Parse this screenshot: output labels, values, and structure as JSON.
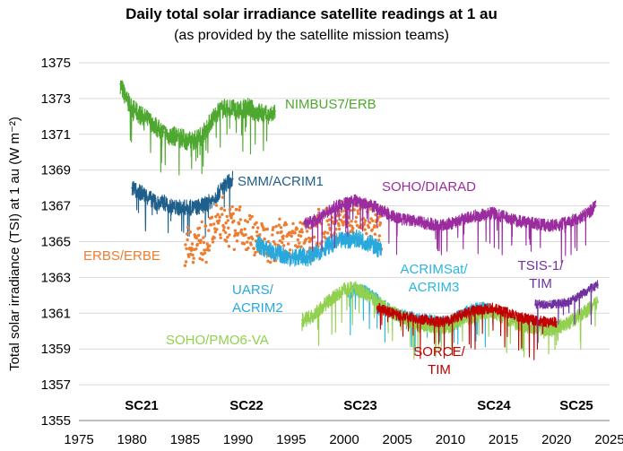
{
  "chart_data": {
    "type": "line",
    "title": "Daily total solar irradiance satellite readings at 1 au",
    "subtitle": "(as provided by the satellite mission teams)",
    "xlabel": "",
    "ylabel": "Total solar irradiance (TSI) at 1 au (W m⁻²)",
    "xlim": [
      1975,
      2025
    ],
    "ylim": [
      1355,
      1375
    ],
    "xticks": [
      1975,
      1980,
      1985,
      1990,
      1995,
      2000,
      2005,
      2010,
      2015,
      2020,
      2025
    ],
    "yticks": [
      1355,
      1357,
      1359,
      1361,
      1363,
      1365,
      1367,
      1369,
      1371,
      1373,
      1375
    ],
    "grid": "horizontal",
    "series": [
      {
        "name": "NIMBUS7/ERB",
        "label_lines": [
          "NIMBUS7/ERB"
        ],
        "color": "#4ea72e",
        "style": "line",
        "x": [
          1978.9,
          1979.5,
          1980.0,
          1980.5,
          1981.0,
          1981.5,
          1982.0,
          1982.5,
          1983.0,
          1983.5,
          1984.0,
          1984.5,
          1985.0,
          1985.5,
          1986.0,
          1986.5,
          1987.0,
          1987.5,
          1988.0,
          1988.5,
          1989.0,
          1989.5,
          1990.0,
          1990.5,
          1991.0,
          1991.5,
          1992.0,
          1992.5,
          1993.0,
          1993.5
        ],
        "y": [
          1373.8,
          1372.9,
          1372.5,
          1372.2,
          1372.0,
          1371.8,
          1371.6,
          1371.3,
          1371.1,
          1370.9,
          1370.9,
          1370.8,
          1370.7,
          1370.6,
          1370.7,
          1370.9,
          1371.3,
          1371.8,
          1372.2,
          1372.4,
          1372.5,
          1372.4,
          1372.3,
          1372.4,
          1372.5,
          1372.3,
          1372.2,
          1372.1,
          1372.0,
          1372.3
        ]
      },
      {
        "name": "SMM/ACRIM1",
        "label_lines": [
          "SMM/ACRIM1"
        ],
        "color": "#1f5f8b",
        "style": "line",
        "x": [
          1980.0,
          1980.5,
          1981.0,
          1981.5,
          1982.0,
          1982.5,
          1983.0,
          1983.5,
          1984.0,
          1984.5,
          1985.0,
          1985.5,
          1986.0,
          1986.5,
          1987.0,
          1987.5,
          1988.0,
          1988.5,
          1989.0,
          1989.5
        ],
        "y": [
          1368.0,
          1367.8,
          1367.7,
          1367.5,
          1367.3,
          1367.1,
          1367.2,
          1367.0,
          1366.9,
          1366.9,
          1366.9,
          1366.9,
          1366.9,
          1367.0,
          1367.1,
          1367.3,
          1367.6,
          1368.0,
          1368.3,
          1368.5
        ]
      },
      {
        "name": "ERBS/ERBE",
        "label_lines": [
          "ERBS/ERBE"
        ],
        "color": "#ed7d31",
        "style": "dots",
        "x": [
          1985.0,
          1985.5,
          1986.0,
          1986.5,
          1987.0,
          1987.5,
          1988.0,
          1988.5,
          1989.0,
          1989.5,
          1990.0,
          1990.5,
          1991.0,
          1991.5,
          1992.0,
          1992.5,
          1993.0,
          1993.5,
          1994.0,
          1994.5,
          1995.0,
          1995.5,
          1996.0,
          1996.5,
          1997.0,
          1997.5,
          1998.0,
          1998.5,
          1999.0,
          1999.5,
          2000.0,
          2000.5,
          2001.0,
          2001.5,
          2002.0,
          2002.5,
          2003.0,
          2003.5
        ],
        "y": [
          1365.0,
          1364.9,
          1364.9,
          1365.0,
          1365.2,
          1365.5,
          1365.9,
          1366.2,
          1366.0,
          1365.7,
          1365.9,
          1365.6,
          1365.4,
          1365.3,
          1365.2,
          1365.1,
          1365.0,
          1365.1,
          1365.2,
          1365.3,
          1365.4,
          1365.3,
          1365.2,
          1365.2,
          1365.3,
          1365.5,
          1365.7,
          1365.8,
          1366.0,
          1366.1,
          1366.2,
          1366.3,
          1366.1,
          1366.0,
          1365.9,
          1365.8,
          1365.7,
          1365.6
        ]
      },
      {
        "name": "UARS/ACRIM2",
        "label_lines": [
          "UARS/",
          "ACRIM2"
        ],
        "color": "#29a8dc",
        "style": "line",
        "x": [
          1991.7,
          1992.0,
          1992.5,
          1993.0,
          1993.5,
          1994.0,
          1994.5,
          1995.0,
          1995.5,
          1996.0,
          1996.5,
          1997.0,
          1997.5,
          1998.0,
          1998.5,
          1999.0,
          1999.5,
          2000.0,
          2000.5,
          2001.0,
          2001.5,
          2002.0,
          2002.5,
          2003.0,
          2003.5
        ],
        "y": [
          1365.0,
          1364.8,
          1364.6,
          1364.5,
          1364.3,
          1364.3,
          1364.2,
          1364.1,
          1364.1,
          1364.2,
          1364.1,
          1364.2,
          1364.4,
          1364.6,
          1364.8,
          1364.9,
          1365.0,
          1365.1,
          1365.1,
          1365.2,
          1365.1,
          1365.0,
          1364.9,
          1364.7,
          1364.5
        ]
      },
      {
        "name": "SOHO/DIARAD",
        "label_lines": [
          "SOHO/DIARAD"
        ],
        "color": "#9b2c9f",
        "style": "line",
        "x": [
          1996.2,
          1997.0,
          1998.0,
          1999.0,
          2000.0,
          2001.0,
          2002.0,
          2003.0,
          2004.0,
          2005.0,
          2006.0,
          2007.0,
          2008.0,
          2009.0,
          2010.0,
          2011.0,
          2012.0,
          2013.0,
          2014.0,
          2015.0,
          2016.0,
          2017.0,
          2018.0,
          2019.0,
          2020.0,
          2021.0,
          2022.0,
          2023.0,
          2023.7
        ],
        "y": [
          1366.0,
          1366.1,
          1366.5,
          1366.9,
          1367.1,
          1367.3,
          1367.1,
          1366.9,
          1366.6,
          1366.3,
          1366.2,
          1366.1,
          1366.0,
          1365.9,
          1366.0,
          1366.2,
          1366.4,
          1366.5,
          1366.6,
          1366.4,
          1366.2,
          1366.1,
          1366.0,
          1365.9,
          1365.9,
          1366.1,
          1366.3,
          1366.6,
          1367.0
        ]
      },
      {
        "name": "ACRIMSat/ACRIM3",
        "label_lines": [
          "ACRIMSat/",
          "ACRIM3"
        ],
        "color": "#29b6e0",
        "style": "line",
        "x": [
          2000.3,
          2001.0,
          2002.0,
          2003.0,
          2004.0,
          2005.0,
          2006.0,
          2007.0,
          2008.0,
          2009.0,
          2010.0,
          2011.0,
          2012.0,
          2013.0,
          2013.8
        ],
        "y": [
          1362.0,
          1362.3,
          1362.2,
          1361.8,
          1361.3,
          1360.9,
          1360.8,
          1360.7,
          1360.6,
          1360.5,
          1360.6,
          1360.9,
          1361.2,
          1361.3,
          1361.2
        ]
      },
      {
        "name": "SOHO/PMO6-VA",
        "label_lines": [
          "SOHO/PMO6-VA"
        ],
        "color": "#92d050",
        "style": "line",
        "x": [
          1996.0,
          1997.0,
          1998.0,
          1999.0,
          2000.0,
          2001.0,
          2002.0,
          2003.0,
          2004.0,
          2005.0,
          2006.0,
          2007.0,
          2008.0,
          2009.0,
          2010.0,
          2011.0,
          2012.0,
          2013.0,
          2014.0,
          2015.0,
          2016.0,
          2017.0,
          2018.0,
          2019.0,
          2020.0,
          2021.0,
          2022.0,
          2023.0,
          2023.9
        ],
        "y": [
          1360.6,
          1360.8,
          1361.4,
          1361.9,
          1362.3,
          1362.4,
          1362.1,
          1361.7,
          1361.2,
          1360.9,
          1360.6,
          1360.3,
          1360.3,
          1360.2,
          1360.3,
          1360.6,
          1360.8,
          1361.0,
          1361.1,
          1360.8,
          1360.5,
          1360.3,
          1360.2,
          1360.1,
          1360.2,
          1360.4,
          1360.8,
          1361.2,
          1361.6
        ]
      },
      {
        "name": "SORCE/TIM",
        "label_lines": [
          "SORCE/",
          "TIM"
        ],
        "color": "#c00000",
        "style": "line",
        "x": [
          2003.1,
          2004.0,
          2005.0,
          2006.0,
          2007.0,
          2008.0,
          2009.0,
          2010.0,
          2011.0,
          2012.0,
          2013.0,
          2014.0,
          2015.0,
          2016.0,
          2017.0,
          2018.0,
          2019.0,
          2020.0
        ],
        "y": [
          1361.3,
          1361.1,
          1360.9,
          1360.8,
          1360.7,
          1360.6,
          1360.5,
          1360.6,
          1360.9,
          1361.1,
          1361.2,
          1361.3,
          1361.1,
          1360.9,
          1360.7,
          1360.6,
          1360.5,
          1360.5
        ]
      },
      {
        "name": "TSIS-1/TIM",
        "label_lines": [
          "TSIS-1/",
          "TIM"
        ],
        "color": "#7030a0",
        "style": "line",
        "x": [
          2018.0,
          2019.0,
          2020.0,
          2021.0,
          2022.0,
          2023.0,
          2023.9
        ],
        "y": [
          1361.5,
          1361.5,
          1361.5,
          1361.6,
          1361.9,
          1362.3,
          1362.6
        ]
      }
    ],
    "annotations": [
      "SC21",
      "SC22",
      "SC23",
      "SC24",
      "SC25"
    ]
  }
}
